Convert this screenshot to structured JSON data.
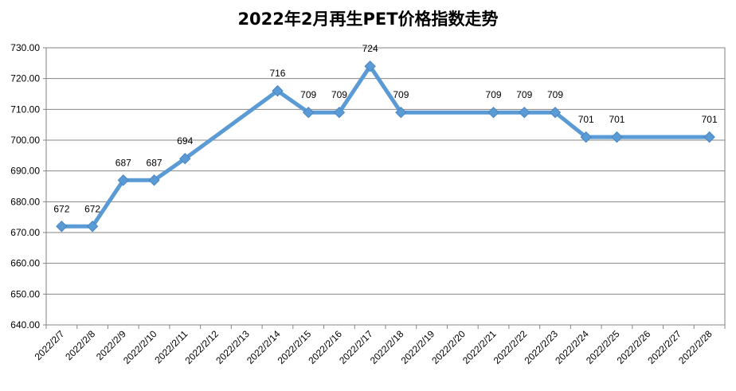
{
  "chart_data": {
    "type": "line",
    "title": "2022年2月再生PET价格指数走势",
    "xlabel": "",
    "ylabel": "",
    "ylim": [
      640,
      730
    ],
    "ytick_step": 10,
    "grid": true,
    "legend": "none",
    "line_color": "#5B9BD5",
    "categories": [
      "2022/2/7",
      "2022/2/8",
      "2022/2/9",
      "2022/2/10",
      "2022/2/11",
      "2022/2/12",
      "2022/2/13",
      "2022/2/14",
      "2022/2/15",
      "2022/2/16",
      "2022/2/17",
      "2022/2/18",
      "2022/2/19",
      "2022/2/20",
      "2022/2/21",
      "2022/2/22",
      "2022/2/23",
      "2022/2/24",
      "2022/2/25",
      "2022/2/26",
      "2022/2/27",
      "2022/2/28"
    ],
    "series": [
      {
        "values": [
          672,
          672,
          687,
          687,
          694,
          null,
          null,
          716,
          709,
          709,
          724,
          709,
          null,
          null,
          709,
          709,
          709,
          701,
          701,
          null,
          null,
          701
        ]
      }
    ]
  }
}
